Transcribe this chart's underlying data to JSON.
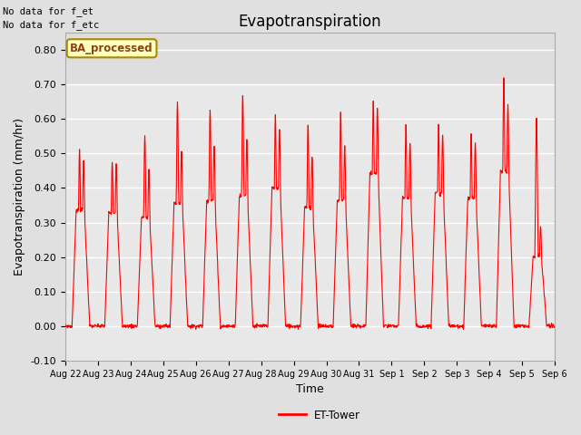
{
  "title": "Evapotranspiration",
  "xlabel": "Time",
  "ylabel": "Evapotranspiration (mm/hr)",
  "ylim": [
    -0.1,
    0.85
  ],
  "yticks": [
    -0.1,
    0.0,
    0.1,
    0.2,
    0.3,
    0.4,
    0.5,
    0.6,
    0.7,
    0.8
  ],
  "background_color": "#e0e0e0",
  "plot_bg_color": "#e8e8e8",
  "line_color": "#ff0000",
  "legend_label": "ET-Tower",
  "top_left_text1": "No data for f_et",
  "top_left_text2": "No data for f_etc",
  "box_label": "BA_processed",
  "x_tick_labels": [
    "Aug 22",
    "Aug 23",
    "Aug 24",
    "Aug 25",
    "Aug 26",
    "Aug 27",
    "Aug 28",
    "Aug 29",
    "Aug 30",
    "Aug 31",
    "Sep 1",
    "Sep 2",
    "Sep 3",
    "Sep 4",
    "Sep 5",
    "Sep 6"
  ],
  "daily_peaks": [
    0.51,
    0.48,
    0.55,
    0.65,
    0.63,
    0.67,
    0.61,
    0.58,
    0.62,
    0.65,
    0.58,
    0.58,
    0.56,
    0.72,
    0.6
  ],
  "daily_peaks2": [
    0.48,
    0.47,
    0.45,
    0.51,
    0.52,
    0.54,
    0.57,
    0.49,
    0.52,
    0.63,
    0.53,
    0.55,
    0.53,
    0.64,
    0.29
  ],
  "title_fontsize": 12,
  "label_fontsize": 9,
  "tick_fontsize": 8,
  "figwidth": 6.4,
  "figheight": 4.8,
  "dpi": 100
}
